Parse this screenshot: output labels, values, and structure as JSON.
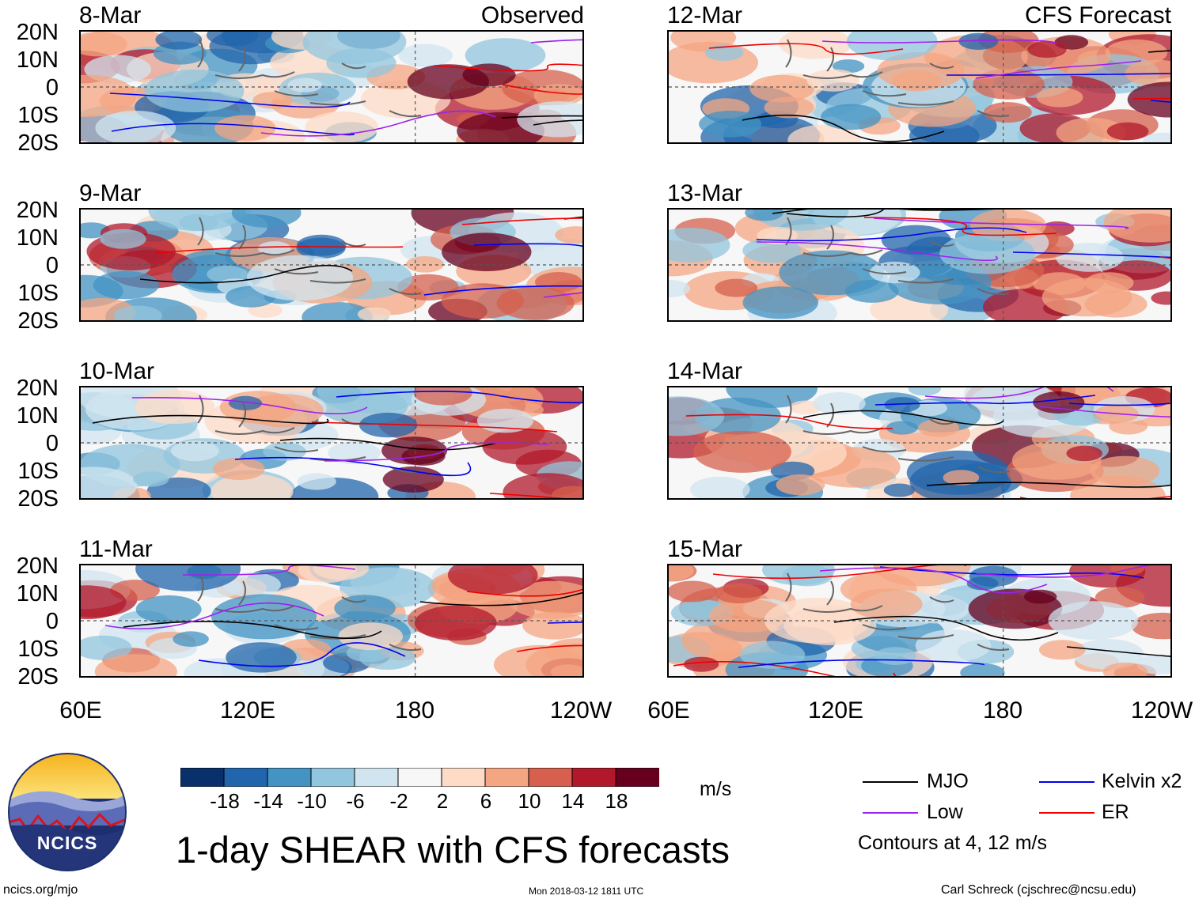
{
  "figure": {
    "title": "1-day SHEAR with CFS forecasts",
    "timestamp": "Mon 2018-03-12 1811 UTC",
    "source_url": "ncics.org/mjo",
    "author": "Carl Schreck (cjschrec@ncsu.edu)",
    "logo_text": "NCICS"
  },
  "columns": [
    {
      "label": "Observed",
      "panels": [
        "8-Mar",
        "9-Mar",
        "10-Mar",
        "11-Mar"
      ]
    },
    {
      "label": "CFS Forecast",
      "panels": [
        "12-Mar",
        "13-Mar",
        "14-Mar",
        "15-Mar"
      ]
    }
  ],
  "axes": {
    "lat_ticks": [
      "20N",
      "10N",
      "0",
      "10S",
      "20S"
    ],
    "lon_ticks": [
      "60E",
      "120E",
      "180",
      "120W"
    ]
  },
  "colorbar": {
    "units": "m/s",
    "ticks": [
      "-18",
      "-14",
      "-10",
      "-6",
      "-2",
      "2",
      "6",
      "10",
      "14",
      "18"
    ],
    "colors": [
      "#08306b",
      "#2166ac",
      "#4393c3",
      "#92c5de",
      "#d1e5f0",
      "#f7f7f7",
      "#fddbc7",
      "#f4a582",
      "#d6604d",
      "#b2182b",
      "#67001f"
    ]
  },
  "legend": {
    "items": [
      {
        "label": "MJO",
        "color": "#000000"
      },
      {
        "label": "Kelvin x2",
        "color": "#0000ee"
      },
      {
        "label": "Low",
        "color": "#a020f0"
      },
      {
        "label": "ER",
        "color": "#ee0000"
      }
    ],
    "note": "Contours at 4, 12 m/s"
  }
}
